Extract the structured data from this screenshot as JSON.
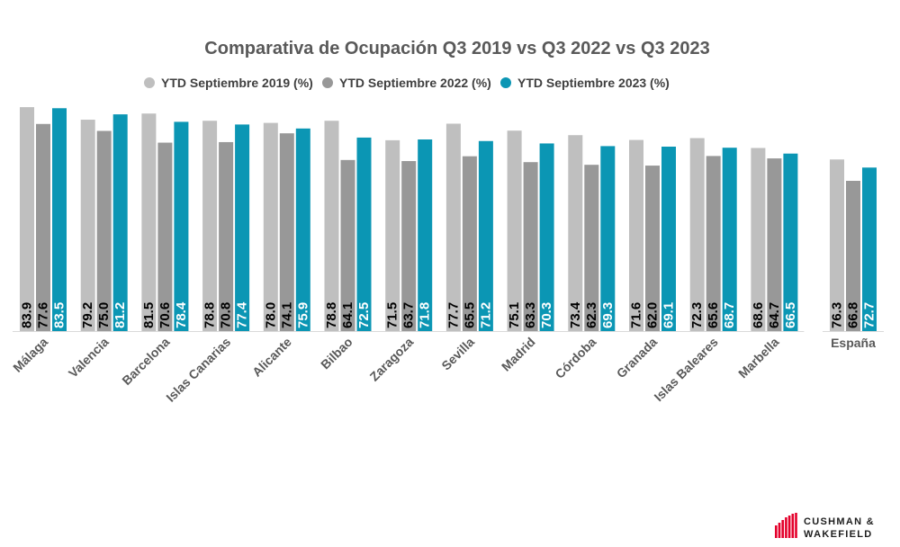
{
  "chart_data": {
    "type": "bar",
    "title": "Comparativa de Ocupación Q3 2019 vs Q3 2022 vs Q3 2023",
    "categories": [
      "Málaga",
      "Valencia",
      "Barcelona",
      "Islas Canarias",
      "Alicante",
      "Bilbao",
      "Zaragoza",
      "Sevilla",
      "Madrid",
      "Córdoba",
      "Granada",
      "Islas Baleares",
      "Marbella",
      "España"
    ],
    "series": [
      {
        "name": "YTD Septiembre 2019 (%)",
        "color": "#bfbfbf",
        "label_color": "#000000",
        "values": [
          83.9,
          79.2,
          81.5,
          78.8,
          78.0,
          78.8,
          71.5,
          77.7,
          75.1,
          73.4,
          71.6,
          72.3,
          68.6,
          76.3
        ]
      },
      {
        "name": "YTD Septiembre 2022 (%)",
        "color": "#989898",
        "label_color": "#000000",
        "values": [
          77.6,
          75.0,
          70.6,
          70.8,
          74.1,
          64.1,
          63.7,
          65.5,
          63.3,
          62.3,
          62.0,
          65.6,
          64.7,
          66.8
        ]
      },
      {
        "name": "YTD Septiembre 2023 (%)",
        "color": "#0b96b4",
        "label_color": "#ffffff",
        "values": [
          83.5,
          81.2,
          78.4,
          77.4,
          75.9,
          72.5,
          71.8,
          71.2,
          70.3,
          69.3,
          69.1,
          68.7,
          66.5,
          72.7
        ]
      }
    ],
    "ylim": [
      0,
      90
    ],
    "grid": false,
    "legend": "top-center"
  },
  "logo": {
    "line1": "CUSHMAN &",
    "line2": "WAKEFIELD",
    "color": "#e4002b"
  }
}
